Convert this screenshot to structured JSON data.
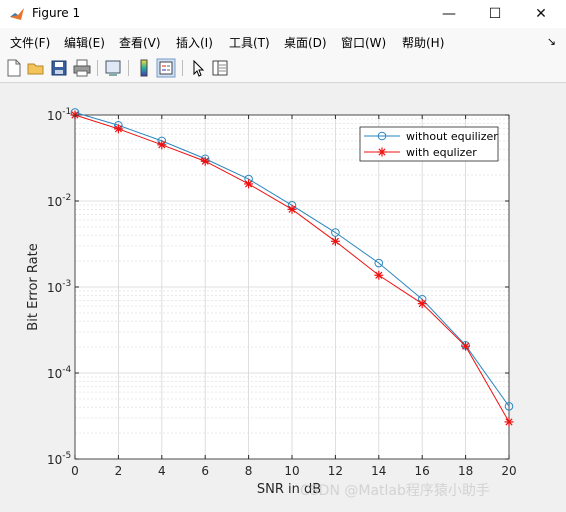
{
  "window": {
    "title": "Figure 1",
    "minimize": "—",
    "maximize": "☐",
    "close": "✕"
  },
  "menu": {
    "items": [
      "文件(F)",
      "编辑(E)",
      "查看(V)",
      "插入(I)",
      "工具(T)",
      "桌面(D)",
      "窗口(W)",
      "帮助(H)"
    ],
    "overflow_icon": "chevron-right-icon"
  },
  "toolbar": {
    "buttons": [
      "new-figure-icon",
      "open-icon",
      "save-icon",
      "print-icon",
      "print-preview-icon",
      "colorbar-icon",
      "legend-icon",
      "pointer-icon",
      "property-inspector-icon"
    ]
  },
  "watermark": "CSDN @Matlab程序猿小助手",
  "colors": {
    "series1": "#2a86bd",
    "series2": "#ee1111",
    "grid": "#dcdcdc"
  },
  "chart_data": {
    "type": "line",
    "title": "",
    "xlabel": "SNR in dB",
    "ylabel": "Bit Error Rate",
    "xlim": [
      0,
      20
    ],
    "ylim": [
      1e-05,
      0.1
    ],
    "yscale": "log",
    "xticks": [
      0,
      2,
      4,
      6,
      8,
      10,
      12,
      14,
      16,
      18,
      20
    ],
    "ytick_labels": [
      {
        "value": 0.1,
        "base": "10",
        "exp": "-1"
      },
      {
        "value": 0.01,
        "base": "10",
        "exp": "-2"
      },
      {
        "value": 0.001,
        "base": "10",
        "exp": "-3"
      },
      {
        "value": 0.0001,
        "base": "10",
        "exp": "-4"
      },
      {
        "value": 1e-05,
        "base": "10",
        "exp": "-5"
      }
    ],
    "grid": true,
    "legend_position": "top-right",
    "x": [
      0,
      2,
      4,
      6,
      8,
      10,
      12,
      14,
      16,
      18,
      20
    ],
    "series": [
      {
        "name": "without equilizer",
        "marker": "circle",
        "values": [
          0.107,
          0.076,
          0.05,
          0.031,
          0.018,
          0.0089,
          0.0043,
          0.0019,
          0.00072,
          0.00021,
          4.1e-05
        ]
      },
      {
        "name": "with equlizer",
        "marker": "star",
        "values": [
          0.1,
          0.069,
          0.045,
          0.029,
          0.0158,
          0.008,
          0.0034,
          0.00137,
          0.00064,
          0.000205,
          2.7e-05
        ]
      }
    ]
  }
}
